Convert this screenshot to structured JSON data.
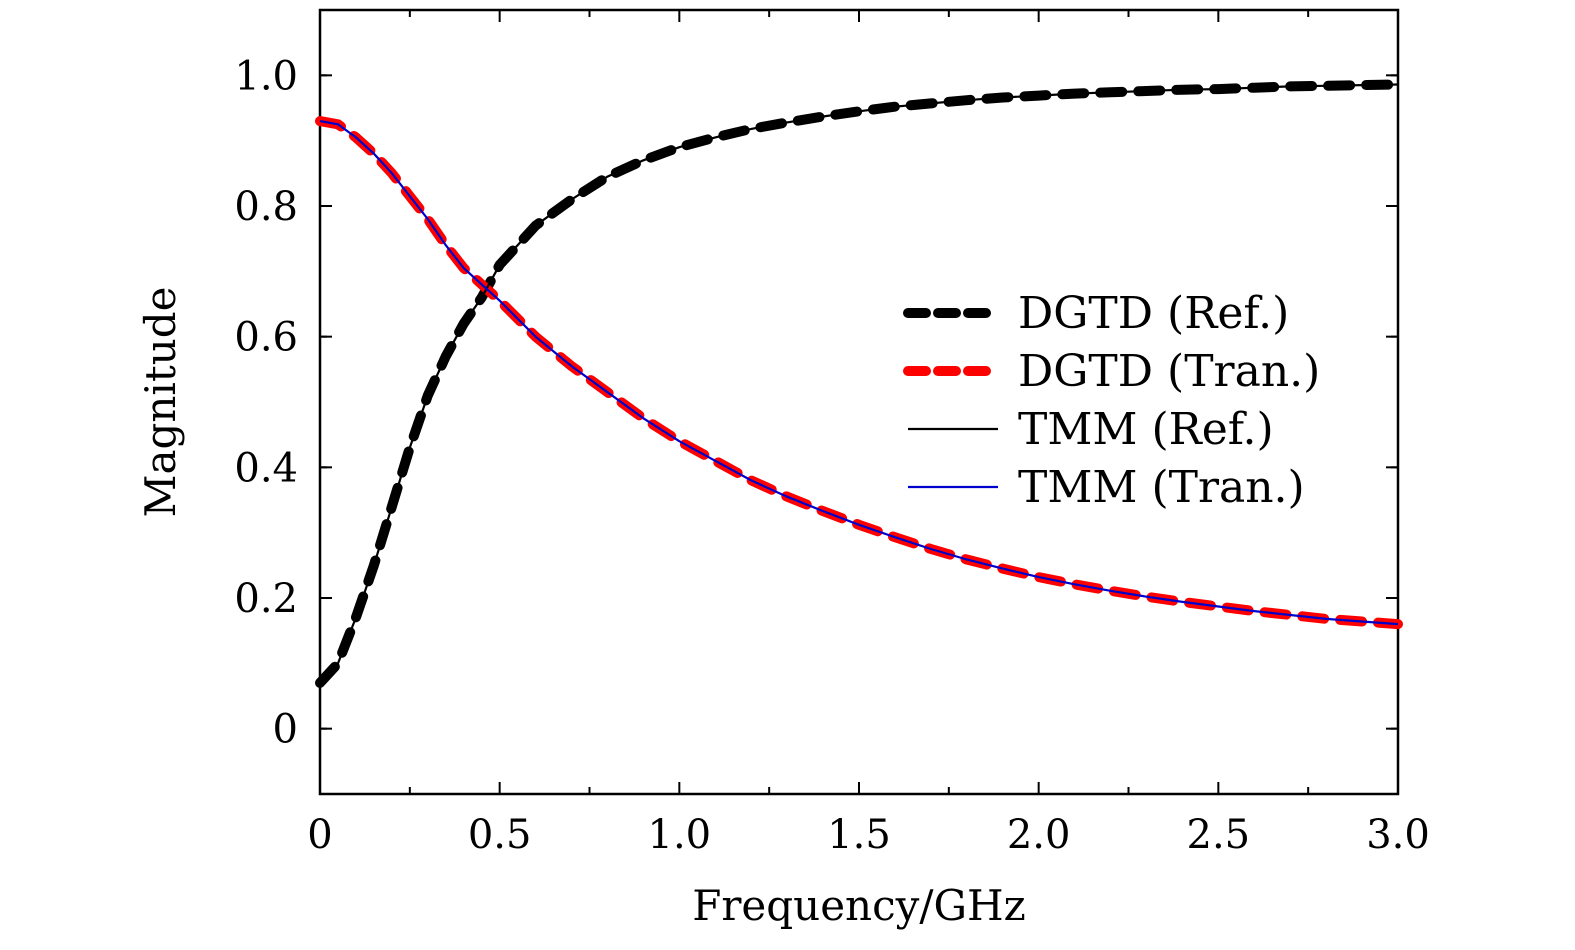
{
  "chart_data": {
    "type": "line",
    "title": "",
    "xlabel": "Frequency/GHz",
    "ylabel": "Magnitude",
    "xlim": [
      0,
      3.0
    ],
    "ylim": [
      -0.1,
      1.1
    ],
    "x_ticks": [
      0,
      0.5,
      1.0,
      1.5,
      2.0,
      2.5,
      3.0
    ],
    "x_tick_labels": [
      "0",
      "0.5",
      "1.0",
      "1.5",
      "2.0",
      "2.5",
      "3.0"
    ],
    "y_ticks": [
      0,
      0.2,
      0.4,
      0.6,
      0.8,
      1.0
    ],
    "y_tick_labels": [
      "0",
      "0.2",
      "0.4",
      "0.6",
      "0.8",
      "1.0"
    ],
    "grid": false,
    "legend_position": "center-right",
    "x": [
      0,
      0.05,
      0.1,
      0.15,
      0.2,
      0.25,
      0.3,
      0.35,
      0.4,
      0.45,
      0.5,
      0.6,
      0.7,
      0.8,
      0.9,
      1.0,
      1.1,
      1.2,
      1.3,
      1.4,
      1.5,
      1.6,
      1.7,
      1.8,
      1.9,
      2.0,
      2.1,
      2.2,
      2.3,
      2.4,
      2.5,
      2.6,
      2.7,
      2.8,
      2.9,
      3.0
    ],
    "series": [
      {
        "name": "DGTD (Ref.)",
        "color": "#000000",
        "style": "dashed-thick",
        "values": [
          0.07,
          0.1,
          0.17,
          0.25,
          0.34,
          0.43,
          0.51,
          0.57,
          0.62,
          0.66,
          0.71,
          0.77,
          0.81,
          0.845,
          0.87,
          0.89,
          0.905,
          0.918,
          0.928,
          0.937,
          0.945,
          0.952,
          0.957,
          0.962,
          0.966,
          0.969,
          0.972,
          0.974,
          0.976,
          0.978,
          0.979,
          0.981,
          0.983,
          0.984,
          0.985,
          0.986
        ]
      },
      {
        "name": "DGTD (Tran.)",
        "color": "#ff0000",
        "style": "dashed-thick",
        "values": [
          0.93,
          0.925,
          0.905,
          0.88,
          0.85,
          0.815,
          0.78,
          0.74,
          0.705,
          0.68,
          0.655,
          0.6,
          0.555,
          0.515,
          0.475,
          0.44,
          0.41,
          0.38,
          0.355,
          0.333,
          0.312,
          0.293,
          0.275,
          0.259,
          0.245,
          0.232,
          0.221,
          0.211,
          0.202,
          0.194,
          0.187,
          0.18,
          0.174,
          0.168,
          0.164,
          0.16
        ]
      },
      {
        "name": "TMM (Ref.)",
        "color": "#000000",
        "style": "solid-thin",
        "values": [
          0.07,
          0.1,
          0.17,
          0.25,
          0.34,
          0.43,
          0.51,
          0.57,
          0.62,
          0.66,
          0.71,
          0.77,
          0.81,
          0.845,
          0.87,
          0.89,
          0.905,
          0.918,
          0.928,
          0.937,
          0.945,
          0.952,
          0.957,
          0.962,
          0.966,
          0.969,
          0.972,
          0.974,
          0.976,
          0.978,
          0.979,
          0.981,
          0.983,
          0.984,
          0.985,
          0.986
        ]
      },
      {
        "name": "TMM (Tran.)",
        "color": "#0000cc",
        "style": "solid-thin",
        "values": [
          0.93,
          0.925,
          0.905,
          0.88,
          0.85,
          0.815,
          0.78,
          0.74,
          0.705,
          0.68,
          0.655,
          0.6,
          0.555,
          0.515,
          0.475,
          0.44,
          0.41,
          0.38,
          0.355,
          0.333,
          0.312,
          0.293,
          0.275,
          0.259,
          0.245,
          0.232,
          0.221,
          0.211,
          0.202,
          0.194,
          0.187,
          0.18,
          0.174,
          0.168,
          0.164,
          0.16
        ]
      }
    ]
  }
}
